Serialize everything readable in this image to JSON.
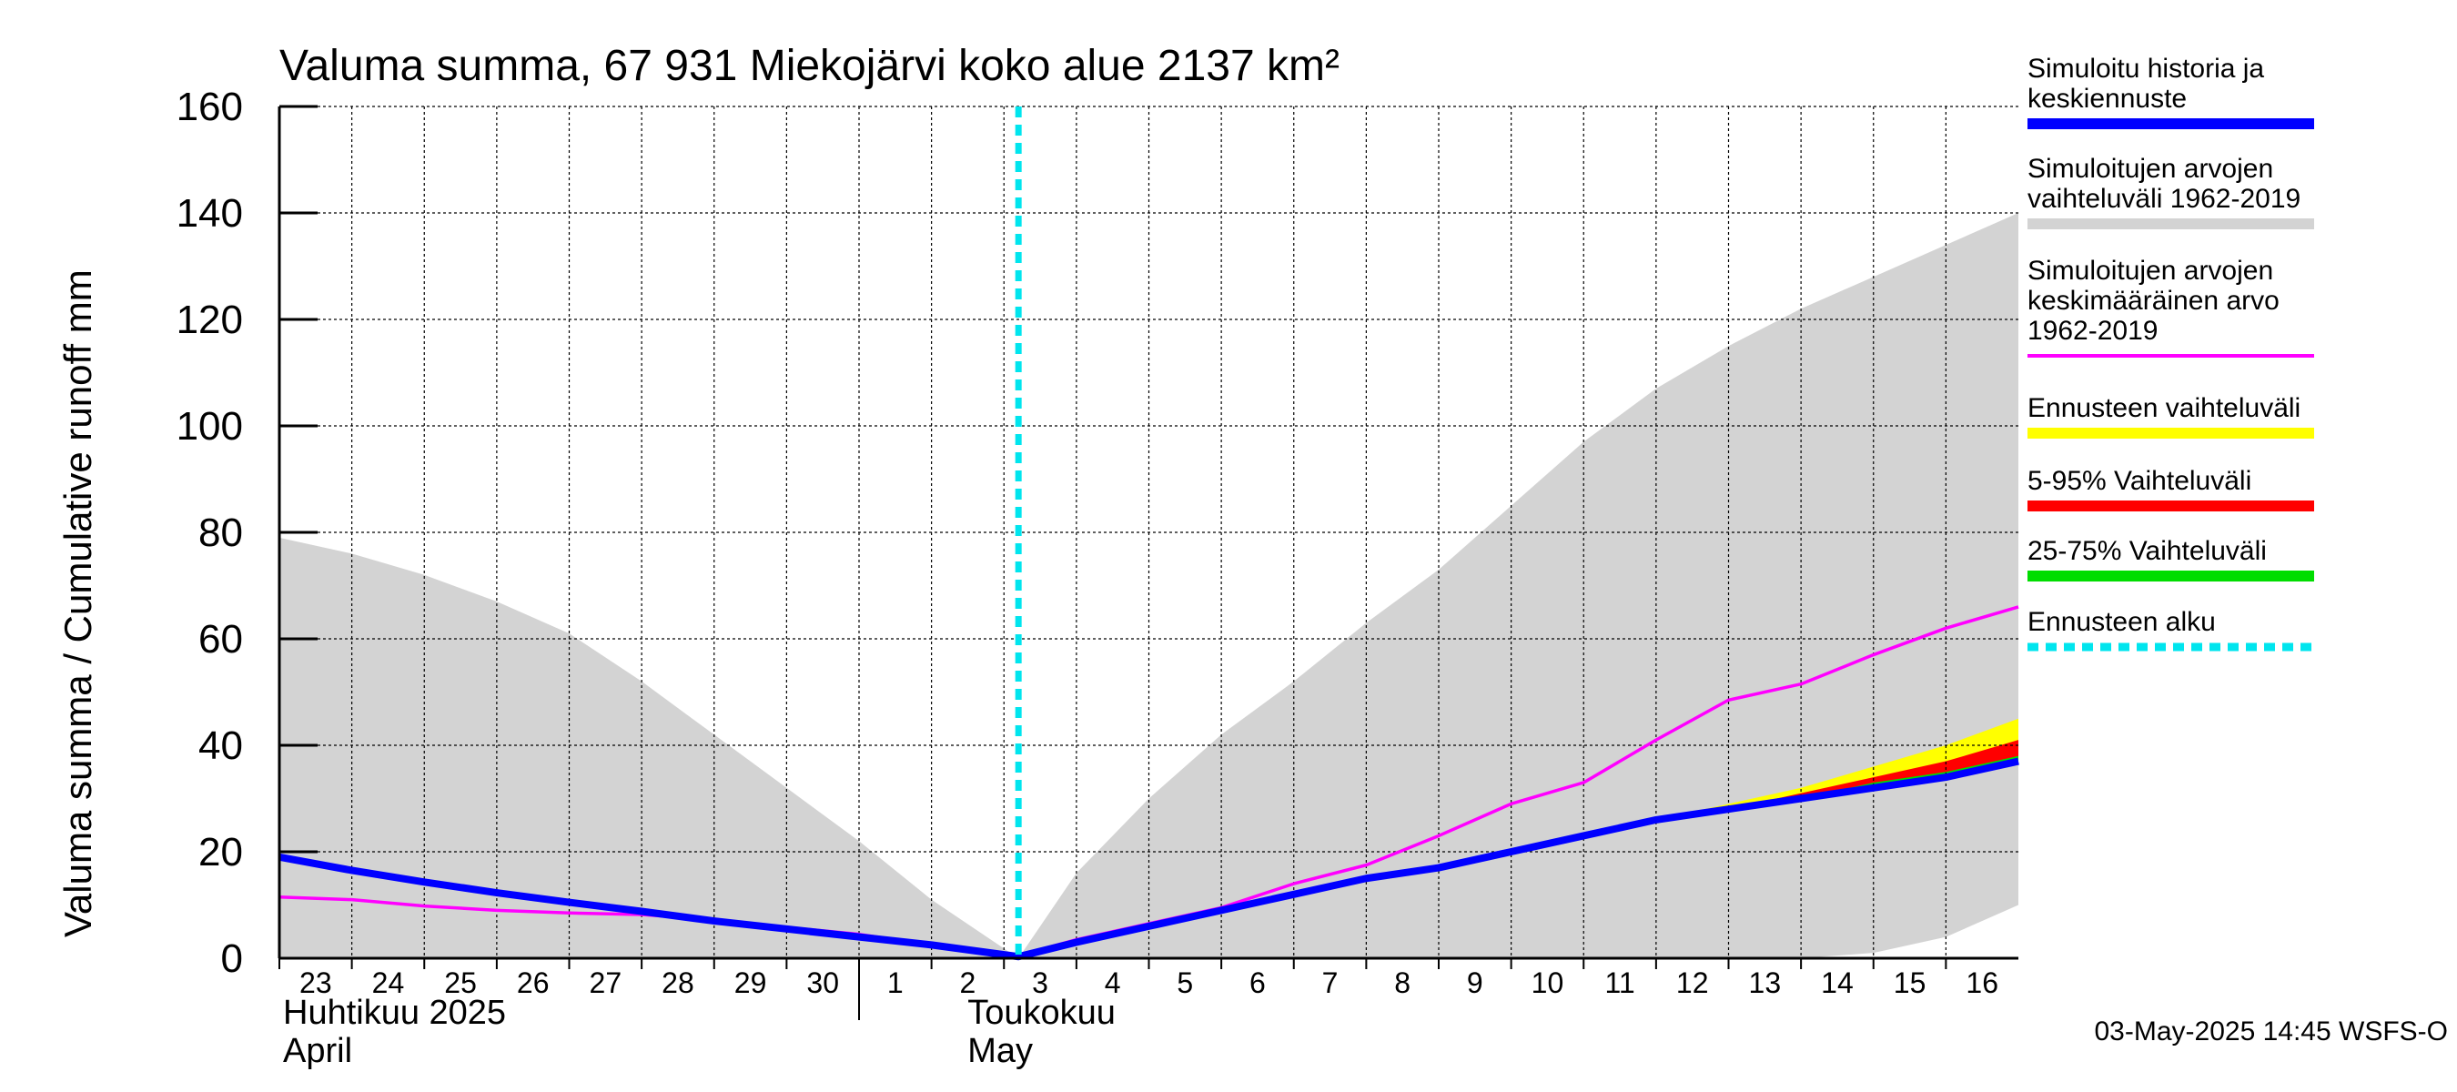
{
  "chart_data": {
    "type": "area",
    "title": "Valuma summa, 67 931 Miekojärvi koko alue 2137 km²",
    "ylabel": "Valuma summa / Cumulative runoff    mm",
    "ylim": [
      0,
      160
    ],
    "yticks": [
      "0",
      "20",
      "40",
      "60",
      "80",
      "100",
      "120",
      "140",
      "160"
    ],
    "x_days": [
      "23",
      "24",
      "25",
      "26",
      "27",
      "28",
      "29",
      "30",
      "1",
      "2",
      "3",
      "4",
      "5",
      "6",
      "7",
      "8",
      "9",
      "10",
      "11",
      "12",
      "13",
      "14",
      "15",
      "16"
    ],
    "month_labels": [
      {
        "fi": "Huhtikuu  2025",
        "en": "April"
      },
      {
        "fi": "Toukokuu",
        "en": "May"
      }
    ],
    "grid": true,
    "forecast_start_x": 10.2,
    "series": [
      {
        "name": "Simuloitujen arvojen vaihteluväli 1962-2019",
        "kind": "band",
        "color": "#d3d3d3",
        "x": [
          0,
          1,
          2,
          3,
          4,
          5,
          6,
          7,
          8,
          9,
          10.2,
          11,
          12,
          13,
          14,
          15,
          16,
          17,
          18,
          19,
          20,
          21,
          22,
          23,
          24
        ],
        "upper": [
          79,
          76,
          72,
          67,
          61,
          52,
          42,
          32,
          22,
          11,
          0,
          16,
          30,
          42,
          52,
          63,
          73,
          85,
          97,
          107,
          115,
          122,
          128,
          134,
          140
        ],
        "lower": [
          0,
          0,
          0,
          0,
          0,
          0,
          0,
          0,
          0,
          0,
          0,
          0,
          0,
          0,
          0,
          0,
          0,
          0,
          0,
          0,
          0,
          0,
          1,
          4,
          10
        ]
      },
      {
        "name": "Simuloitujen arvojen keskimääräinen arvo 1962-2019",
        "kind": "line",
        "color": "#ff00ff",
        "x": [
          0,
          1,
          2,
          3,
          4,
          5,
          6,
          7,
          8,
          9,
          10.2,
          11,
          12,
          13,
          14,
          15,
          16,
          17,
          18,
          19,
          20,
          21,
          22,
          23,
          24
        ],
        "values": [
          11.5,
          11.0,
          9.8,
          9.0,
          8.5,
          8.2,
          7.2,
          5.8,
          4.5,
          2.5,
          0.5,
          3.5,
          6.5,
          9.5,
          14,
          17.5,
          23,
          29,
          33,
          41,
          48.5,
          51.5,
          57,
          62,
          66
        ]
      },
      {
        "name": "Ennusteen vaihteluväli",
        "kind": "band",
        "color": "#ffff00",
        "x": [
          10.2,
          11,
          12,
          13,
          14,
          15,
          16,
          17,
          18,
          19,
          20,
          21,
          22,
          23,
          24
        ],
        "upper": [
          0.3,
          3,
          6,
          9,
          12,
          15,
          17,
          20,
          23,
          26,
          29,
          32,
          36,
          40,
          45
        ],
        "lower": [
          0.3,
          3,
          6,
          9,
          12,
          15,
          17,
          20,
          23,
          26,
          28,
          30,
          32,
          34,
          37
        ]
      },
      {
        "name": "5-95% Vaihteluväli",
        "kind": "band",
        "color": "#ff0000",
        "x": [
          10.2,
          11,
          12,
          13,
          14,
          15,
          16,
          17,
          18,
          19,
          20,
          21,
          22,
          23,
          24
        ],
        "upper": [
          0.3,
          3,
          6,
          9,
          12,
          15,
          17,
          20,
          23,
          26,
          28,
          31,
          34,
          37,
          41
        ],
        "lower": [
          0.3,
          3,
          6,
          9,
          12,
          15,
          17,
          20,
          23,
          26,
          28,
          30,
          32,
          34,
          37
        ]
      },
      {
        "name": "25-75% Vaihteluväli",
        "kind": "band",
        "color": "#00dd00",
        "x": [
          10.2,
          11,
          12,
          13,
          14,
          15,
          16,
          17,
          18,
          19,
          20,
          21,
          22,
          23,
          24
        ],
        "upper": [
          0.3,
          3,
          6,
          9,
          12,
          15,
          17,
          20,
          23,
          26,
          28,
          30,
          33,
          35,
          38
        ],
        "lower": [
          0.3,
          3,
          6,
          9,
          12,
          15,
          17,
          20,
          23,
          26,
          28,
          30,
          32,
          34,
          37
        ]
      },
      {
        "name": "Simuloitu historia ja keskiennuste",
        "kind": "line",
        "color": "#0000ff",
        "x": [
          0,
          1,
          2,
          3,
          4,
          5,
          6,
          7,
          8,
          9,
          10.2,
          11,
          12,
          13,
          14,
          15,
          16,
          17,
          18,
          19,
          20,
          21,
          22,
          23,
          24
        ],
        "values": [
          19,
          16.5,
          14.3,
          12.3,
          10.5,
          8.8,
          7.0,
          5.5,
          4.0,
          2.5,
          0.3,
          3,
          6,
          9,
          12,
          15,
          17,
          20,
          23,
          26,
          28,
          30,
          32,
          34,
          37
        ]
      }
    ],
    "legend": [
      {
        "label": "Simuloitu historia ja\nkeskiennuste",
        "color": "#0000ff",
        "style": "solid"
      },
      {
        "label": "Simuloitujen arvojen\nvaihteluväli 1962-2019",
        "color": "#d3d3d3",
        "style": "solid"
      },
      {
        "label": "Simuloitujen arvojen\nkeskimääräinen arvo\n   1962-2019",
        "color": "#ff00ff",
        "style": "thin"
      },
      {
        "label": "Ennusteen vaihteluväli",
        "color": "#ffff00",
        "style": "solid"
      },
      {
        "label": "5-95% Vaihteluväli",
        "color": "#ff0000",
        "style": "solid"
      },
      {
        "label": "25-75% Vaihteluväli",
        "color": "#00dd00",
        "style": "solid"
      },
      {
        "label": "Ennusteen alku",
        "color": "#00e5ee",
        "style": "dotted"
      }
    ],
    "footer": "03-May-2025 14:45 WSFS-O",
    "forecast_line_color": "#00e5ee"
  }
}
